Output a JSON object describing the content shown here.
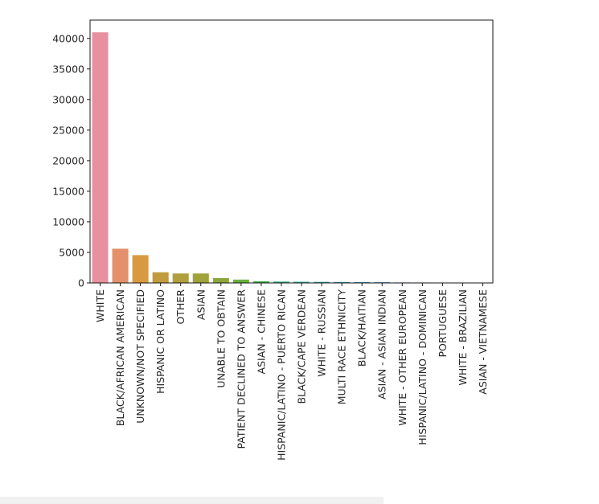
{
  "chart_data": {
    "type": "bar",
    "title": "",
    "xlabel": "",
    "ylabel": "",
    "ylim": [
      0,
      43000
    ],
    "yticks": [
      0,
      5000,
      10000,
      15000,
      20000,
      25000,
      30000,
      35000,
      40000
    ],
    "ytick_labels": [
      "0",
      "5000",
      "10000",
      "15000",
      "20000",
      "25000",
      "30000",
      "35000",
      "40000"
    ],
    "grid": false,
    "legend": "none",
    "categories": [
      "WHITE",
      "BLACK/AFRICAN AMERICAN",
      "UNKNOWN/NOT SPECIFIED",
      "HISPANIC OR LATINO",
      "OTHER",
      "ASIAN",
      "UNABLE TO OBTAIN",
      "PATIENT DECLINED TO ANSWER",
      "ASIAN - CHINESE",
      "HISPANIC/LATINO - PUERTO RICAN",
      "BLACK/CAPE VERDEAN",
      "WHITE - RUSSIAN",
      "MULTI RACE ETHNICITY",
      "BLACK/HAITIAN",
      "ASIAN - ASIAN INDIAN",
      "WHITE - OTHER EUROPEAN",
      "HISPANIC/LATINO - DOMINICAN",
      "PORTUGUESE",
      "WHITE - BRAZILIAN",
      "ASIAN - VIETNAMESE"
    ],
    "values": [
      41000,
      5600,
      4550,
      1750,
      1550,
      1550,
      800,
      550,
      280,
      230,
      200,
      180,
      160,
      140,
      120,
      80,
      70,
      60,
      50,
      40
    ],
    "colors": [
      "#e8909f",
      "#e3906b",
      "#d99a3f",
      "#c29b3e",
      "#b09f3c",
      "#a0a23a",
      "#8ea73a",
      "#6ab03e",
      "#3eb24f",
      "#38b08a",
      "#3bad9c",
      "#3ba9a8",
      "#3fa6b6",
      "#45a2c6",
      "#5d9be0",
      "#8f92e8",
      "#a78aea",
      "#c47fe2",
      "#df7ad3",
      "#e884b5"
    ]
  }
}
